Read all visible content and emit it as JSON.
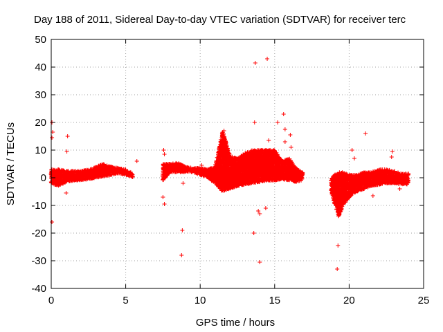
{
  "chart_data": {
    "type": "scatter",
    "title": "Day 188 of 2011, Sidereal Day-to-day VTEC variation (SDTVAR) for receiver terc",
    "xlabel": "GPS time / hours",
    "ylabel": "SDTVAR / TECUs",
    "xlim": [
      0,
      25
    ],
    "ylim": [
      -40,
      50
    ],
    "xticks": [
      0,
      5,
      10,
      15,
      20,
      25
    ],
    "yticks": [
      -40,
      -30,
      -20,
      -10,
      0,
      10,
      20,
      30,
      40,
      50
    ],
    "grid": true,
    "marker": "+",
    "color": "#ff0000",
    "series": [
      {
        "name": "SDTVAR",
        "description": "dense band of points (approximate envelope, min/max per time)",
        "band": [
          {
            "x": 0.0,
            "ymin": -2,
            "ymax": 3
          },
          {
            "x": 0.5,
            "ymin": -3,
            "ymax": 3
          },
          {
            "x": 1.0,
            "ymin": -1.5,
            "ymax": 2.5
          },
          {
            "x": 1.5,
            "ymin": -1,
            "ymax": 2.5
          },
          {
            "x": 2.0,
            "ymin": -1,
            "ymax": 2.5
          },
          {
            "x": 2.5,
            "ymin": -0.5,
            "ymax": 3
          },
          {
            "x": 3.0,
            "ymin": 0,
            "ymax": 4
          },
          {
            "x": 3.5,
            "ymin": 0.5,
            "ymax": 5
          },
          {
            "x": 4.0,
            "ymin": 1,
            "ymax": 4
          },
          {
            "x": 4.5,
            "ymin": 1.5,
            "ymax": 3.5
          },
          {
            "x": 5.0,
            "ymin": 1,
            "ymax": 3
          },
          {
            "x": 5.5,
            "ymin": 0,
            "ymax": 1.5
          },
          {
            "x": 7.5,
            "ymin": -1,
            "ymax": 5
          },
          {
            "x": 8.0,
            "ymin": 2,
            "ymax": 5
          },
          {
            "x": 8.5,
            "ymin": 2,
            "ymax": 5.5
          },
          {
            "x": 9.0,
            "ymin": 2,
            "ymax": 4
          },
          {
            "x": 9.5,
            "ymin": 2,
            "ymax": 3.5
          },
          {
            "x": 10.0,
            "ymin": 1,
            "ymax": 3.5
          },
          {
            "x": 10.5,
            "ymin": 0,
            "ymax": 3
          },
          {
            "x": 11.0,
            "ymin": -2,
            "ymax": 4
          },
          {
            "x": 11.5,
            "ymin": -5,
            "ymax": 17
          },
          {
            "x": 12.0,
            "ymin": -4,
            "ymax": 8
          },
          {
            "x": 12.5,
            "ymin": -3,
            "ymax": 7
          },
          {
            "x": 13.0,
            "ymin": -2.5,
            "ymax": 9
          },
          {
            "x": 13.5,
            "ymin": -2,
            "ymax": 10
          },
          {
            "x": 14.0,
            "ymin": -1.5,
            "ymax": 10
          },
          {
            "x": 14.5,
            "ymin": -1,
            "ymax": 10
          },
          {
            "x": 15.0,
            "ymin": -1,
            "ymax": 10
          },
          {
            "x": 15.5,
            "ymin": -0.5,
            "ymax": 6
          },
          {
            "x": 16.0,
            "ymin": -1,
            "ymax": 7
          },
          {
            "x": 16.5,
            "ymin": -1.5,
            "ymax": 3
          },
          {
            "x": 16.9,
            "ymin": -1,
            "ymax": 2
          },
          {
            "x": 18.8,
            "ymin": -5,
            "ymax": 0
          },
          {
            "x": 19.0,
            "ymin": -9,
            "ymax": 1
          },
          {
            "x": 19.3,
            "ymin": -14,
            "ymax": 2
          },
          {
            "x": 19.6,
            "ymin": -10,
            "ymax": 2
          },
          {
            "x": 20.0,
            "ymin": -7,
            "ymax": 1
          },
          {
            "x": 20.5,
            "ymin": -5,
            "ymax": 1
          },
          {
            "x": 21.0,
            "ymin": -4,
            "ymax": 2
          },
          {
            "x": 21.5,
            "ymin": -3,
            "ymax": 2
          },
          {
            "x": 22.0,
            "ymin": -2.5,
            "ymax": 3
          },
          {
            "x": 22.5,
            "ymin": -2,
            "ymax": 3
          },
          {
            "x": 23.0,
            "ymin": -2,
            "ymax": 2.5
          },
          {
            "x": 23.5,
            "ymin": -2.5,
            "ymax": 1.5
          },
          {
            "x": 24.0,
            "ymin": -2.5,
            "ymax": 1.5
          }
        ],
        "outliers": [
          [
            0.05,
            20
          ],
          [
            0.1,
            16.5
          ],
          [
            0.05,
            14.5
          ],
          [
            0.05,
            -16
          ],
          [
            1.1,
            15
          ],
          [
            1.05,
            9.5
          ],
          [
            1.0,
            -5.5
          ],
          [
            7.55,
            10
          ],
          [
            7.6,
            8.5
          ],
          [
            7.5,
            -7
          ],
          [
            7.6,
            -9.5
          ],
          [
            8.8,
            -19
          ],
          [
            8.75,
            -28
          ],
          [
            8.85,
            -2
          ],
          [
            11.6,
            17
          ],
          [
            13.7,
            41.5
          ],
          [
            14.5,
            43
          ],
          [
            13.65,
            20
          ],
          [
            13.6,
            -20
          ],
          [
            13.9,
            -12
          ],
          [
            14.0,
            -13
          ],
          [
            14.0,
            -30.5
          ],
          [
            14.4,
            -11
          ],
          [
            14.6,
            13.5
          ],
          [
            15.2,
            20
          ],
          [
            15.6,
            23
          ],
          [
            15.7,
            17.5
          ],
          [
            15.7,
            13
          ],
          [
            16.05,
            15.5
          ],
          [
            16.1,
            11
          ],
          [
            19.2,
            -33
          ],
          [
            19.25,
            -24.5
          ],
          [
            20.2,
            10
          ],
          [
            20.35,
            7
          ],
          [
            21.1,
            16
          ],
          [
            21.6,
            -6.5
          ],
          [
            22.9,
            9.5
          ],
          [
            22.85,
            7.5
          ],
          [
            23.4,
            -4
          ],
          [
            5.75,
            6
          ],
          [
            10.1,
            4.5
          ],
          [
            3.6,
            3.5
          ]
        ]
      }
    ]
  }
}
